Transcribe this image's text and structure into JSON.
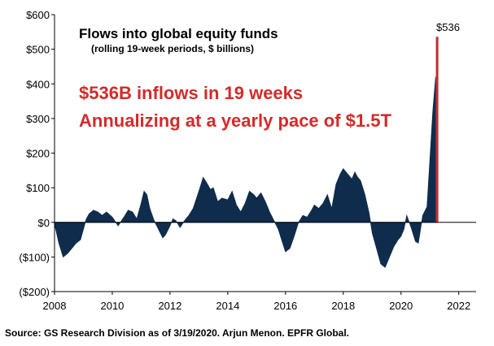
{
  "chart_data": {
    "type": "area",
    "title": "Flows into global equity funds",
    "subtitle": "(rolling  19-week periods, $ billions)",
    "xlabel": "",
    "ylabel": "",
    "xlim": [
      2008,
      2022.6
    ],
    "ylim": [
      -200,
      600
    ],
    "x_ticks": [
      "2008",
      "2010",
      "2012",
      "2014",
      "2016",
      "2018",
      "2020",
      "2022"
    ],
    "y_ticks": [
      "$600",
      "$500",
      "$400",
      "$300",
      "$200",
      "$100",
      "$0",
      "($100)",
      "($200)"
    ],
    "grid": false,
    "legend": "none",
    "annotations": [
      "$536B inflows in 19 weeks",
      "Annualizing at a yearly pace of $1.5T"
    ],
    "peak": {
      "label": "$536",
      "x": 2021.25,
      "value": 536
    },
    "series": [
      {
        "x": [
          2008.0,
          2008.15,
          2008.3,
          2008.45,
          2008.6,
          2008.75,
          2008.9,
          2009.0,
          2009.1,
          2009.2,
          2009.35,
          2009.5,
          2009.65,
          2009.8,
          2010.0,
          2010.2,
          2010.4,
          2010.55,
          2010.7,
          2010.85,
          2011.0,
          2011.1,
          2011.2,
          2011.3,
          2011.45,
          2011.6,
          2011.75,
          2011.85,
          2012.0,
          2012.1,
          2012.2,
          2012.35,
          2012.5,
          2012.65,
          2012.8,
          2013.0,
          2013.15,
          2013.3,
          2013.4,
          2013.5,
          2013.65,
          2013.8,
          2014.0,
          2014.15,
          2014.3,
          2014.45,
          2014.6,
          2014.75,
          2014.9,
          2015.0,
          2015.15,
          2015.3,
          2015.45,
          2015.6,
          2015.75,
          2015.9,
          2016.0,
          2016.15,
          2016.3,
          2016.45,
          2016.6,
          2016.75,
          2016.9,
          2017.0,
          2017.15,
          2017.3,
          2017.45,
          2017.6,
          2017.75,
          2017.9,
          2018.0,
          2018.15,
          2018.3,
          2018.4,
          2018.5,
          2018.6,
          2018.75,
          2018.9,
          2019.0,
          2019.15,
          2019.3,
          2019.45,
          2019.6,
          2019.75,
          2019.9,
          2020.0,
          2020.1,
          2020.2,
          2020.35,
          2020.5,
          2020.6,
          2020.75,
          2020.9,
          2021.0,
          2021.1,
          2021.2
        ],
        "values": [
          -5,
          -60,
          -100,
          -90,
          -75,
          -60,
          -50,
          -20,
          10,
          25,
          35,
          30,
          20,
          30,
          15,
          -10,
          15,
          35,
          30,
          10,
          55,
          90,
          80,
          40,
          5,
          -20,
          -45,
          -35,
          -10,
          10,
          5,
          -15,
          5,
          20,
          40,
          90,
          130,
          110,
          95,
          100,
          60,
          70,
          65,
          90,
          50,
          30,
          55,
          90,
          80,
          70,
          85,
          60,
          30,
          5,
          -20,
          -60,
          -85,
          -75,
          -40,
          0,
          20,
          15,
          35,
          50,
          40,
          55,
          80,
          40,
          110,
          140,
          155,
          140,
          125,
          145,
          130,
          120,
          80,
          25,
          -30,
          -75,
          -120,
          -130,
          -100,
          -70,
          -50,
          -40,
          -20,
          20,
          -15,
          -55,
          -60,
          20,
          45,
          180,
          320,
          420
        ]
      }
    ]
  },
  "source": "Source: GS Research Division as of 3/19/2020. Arjun Menon. EPFR Global.",
  "colors": {
    "area": "#0f2c4c",
    "peak_bar": "#c52a2a",
    "annotation": "#d22b2b",
    "axis": "#000000"
  }
}
